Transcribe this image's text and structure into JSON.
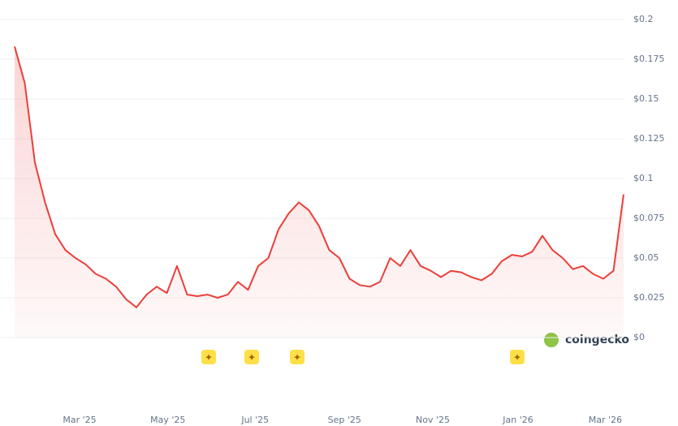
{
  "chart_data": {
    "type": "line",
    "series": [
      {
        "color": "#ea3f3a",
        "values": [
          0.183,
          0.16,
          0.11,
          0.085,
          0.065,
          0.055,
          0.05,
          0.046,
          0.04,
          0.037,
          0.032,
          0.024,
          0.019,
          0.027,
          0.032,
          0.028,
          0.045,
          0.027,
          0.026,
          0.027,
          0.025,
          0.027,
          0.035,
          0.03,
          0.045,
          0.05,
          0.068,
          0.078,
          0.085,
          0.08,
          0.07,
          0.055,
          0.05,
          0.037,
          0.033,
          0.032,
          0.035,
          0.05,
          0.045,
          0.055,
          0.045,
          0.042,
          0.038,
          0.042,
          0.041,
          0.038,
          0.036,
          0.04,
          0.048,
          0.052,
          0.051,
          0.054,
          0.064,
          0.055,
          0.05,
          0.043,
          0.045,
          0.04,
          0.037,
          0.042,
          0.09
        ]
      }
    ],
    "xlim": [
      0,
      60
    ],
    "xticks": [
      {
        "value": 6.4,
        "label": "Mar '25"
      },
      {
        "value": 15.1,
        "label": "May '25"
      },
      {
        "value": 23.7,
        "label": "Jul '25"
      },
      {
        "value": 32.5,
        "label": "Sep '25"
      },
      {
        "value": 41.2,
        "label": "Nov '25"
      },
      {
        "value": 49.6,
        "label": "Jan '26"
      },
      {
        "value": 58.2,
        "label": "Mar '26"
      }
    ],
    "ylim": [
      0,
      0.2
    ],
    "yticks": [
      {
        "value": 0,
        "label": "$0"
      },
      {
        "value": 0.025,
        "label": "$0.025"
      },
      {
        "value": 0.05,
        "label": "$0.05"
      },
      {
        "value": 0.075,
        "label": "$0.075"
      },
      {
        "value": 0.1,
        "label": "$0.1"
      },
      {
        "value": 0.125,
        "label": "$0.125"
      },
      {
        "value": 0.15,
        "label": "$0.15"
      },
      {
        "value": 0.175,
        "label": "$0.175"
      },
      {
        "value": 0.2,
        "label": "$0.2"
      }
    ],
    "grid": true,
    "watermark": "coingecko"
  }
}
